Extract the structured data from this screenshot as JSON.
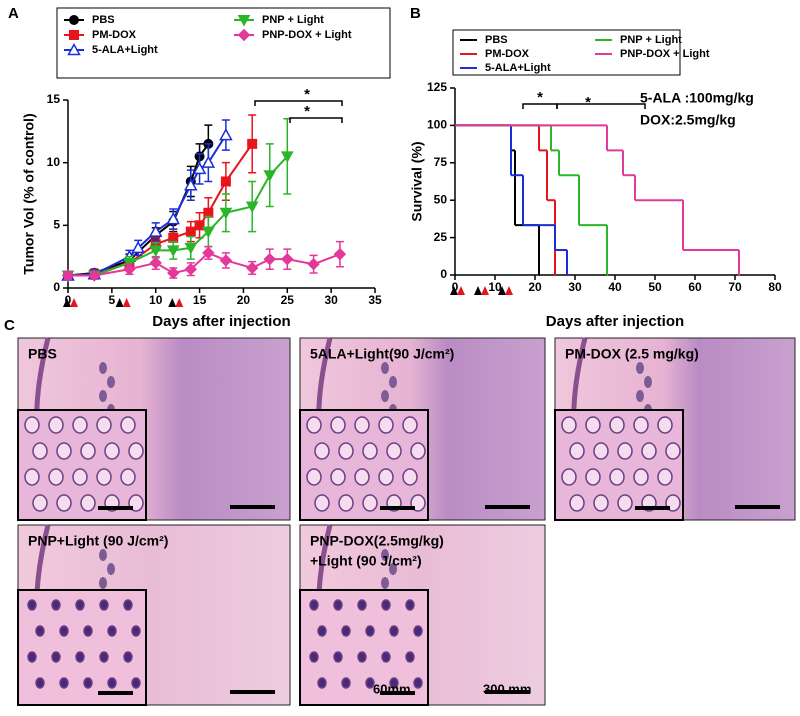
{
  "panel_labels": [
    "A",
    "B",
    "C"
  ],
  "chart_data": [
    {
      "type": "line",
      "x_label": "Days after injection",
      "y_label": "Tumor Vol (% of control)",
      "xlim": [
        0,
        35
      ],
      "xticks": [
        0,
        5,
        10,
        15,
        20,
        25,
        30,
        35
      ],
      "ylim": [
        0,
        15
      ],
      "yticks": [
        0,
        5,
        10,
        15
      ],
      "injections": [
        0,
        6,
        12
      ],
      "annotations": [
        "*",
        "*"
      ],
      "series": [
        {
          "name": "PBS",
          "color": "#000000",
          "marker": "circle",
          "x": [
            0,
            3,
            7,
            10,
            12,
            14,
            15,
            16
          ],
          "values": [
            1,
            1.2,
            2.2,
            4.2,
            5.3,
            8.5,
            10.5,
            11.5
          ],
          "errors": [
            0.3,
            0.3,
            0.5,
            0.6,
            0.8,
            1.2,
            1,
            1.5
          ]
        },
        {
          "name": "PM-DOX",
          "color": "#e8141c",
          "marker": "square",
          "x": [
            0,
            3,
            7,
            10,
            12,
            14,
            15,
            16,
            18,
            21
          ],
          "values": [
            1,
            1.1,
            2,
            3.5,
            4,
            4.5,
            5,
            6,
            8.5,
            11.5
          ],
          "errors": [
            0.3,
            0.3,
            0.4,
            0.5,
            0.7,
            0.8,
            1,
            1.2,
            1.5,
            2.3
          ]
        },
        {
          "name": "5-ALA+Light",
          "color": "#1a2fd6",
          "marker": "triangle-open",
          "x": [
            0,
            3,
            7,
            8,
            10,
            12,
            14,
            15,
            16,
            18
          ],
          "values": [
            1,
            1.1,
            2.5,
            3.2,
            4.5,
            5.5,
            8.2,
            9.5,
            10,
            12.2
          ],
          "errors": [
            0.3,
            0.3,
            0.5,
            0.6,
            0.7,
            0.8,
            1.2,
            1.2,
            1.5,
            1.2
          ]
        },
        {
          "name": "PNP + Light",
          "color": "#2ab52a",
          "marker": "triangle-down",
          "x": [
            0,
            3,
            7,
            10,
            12,
            14,
            16,
            18,
            21,
            23,
            25
          ],
          "values": [
            1,
            1,
            2,
            3,
            3,
            3.2,
            4.5,
            6,
            6.5,
            9,
            10.5
          ],
          "errors": [
            0.3,
            0.3,
            0.5,
            0.6,
            0.7,
            0.9,
            1.2,
            1.5,
            2,
            2.5,
            3
          ]
        },
        {
          "name": "PNP-DOX + Light",
          "color": "#e2399a",
          "marker": "diamond",
          "x": [
            0,
            3,
            7,
            10,
            12,
            14,
            16,
            18,
            21,
            23,
            25,
            28,
            31
          ],
          "values": [
            1,
            1,
            1.5,
            2,
            1.2,
            1.5,
            2.8,
            2.2,
            1.6,
            2.3,
            2.3,
            1.9,
            2.7
          ],
          "errors": [
            0.3,
            0.3,
            0.4,
            0.5,
            0.4,
            0.5,
            0.5,
            0.6,
            0.5,
            0.8,
            0.8,
            0.7,
            1
          ]
        }
      ]
    },
    {
      "type": "step",
      "x_label": "Days after injection",
      "y_label": "Survival (%)",
      "xlim": [
        0,
        80
      ],
      "xticks": [
        0,
        10,
        20,
        30,
        40,
        50,
        60,
        70,
        80
      ],
      "ylim": [
        0,
        125
      ],
      "yticks": [
        0,
        25,
        50,
        75,
        100,
        125
      ],
      "injections": [
        0,
        6,
        12
      ],
      "annotations": [
        "*",
        "*",
        "5-ALA :100mg/kg",
        "DOX:2.5mg/kg"
      ],
      "series": [
        {
          "name": "PBS",
          "color": "#000000",
          "x": [
            0,
            14,
            15,
            21
          ],
          "values": [
            100,
            83.3,
            33.3,
            0
          ]
        },
        {
          "name": "PM-DOX",
          "color": "#e8141c",
          "x": [
            0,
            21,
            23,
            25
          ],
          "values": [
            100,
            83.3,
            50,
            0
          ]
        },
        {
          "name": "5-ALA+Light",
          "color": "#1a2fd6",
          "x": [
            0,
            14,
            17,
            25,
            28
          ],
          "values": [
            100,
            66.7,
            33.3,
            16.7,
            0
          ]
        },
        {
          "name": "PNP + Light",
          "color": "#2ab52a",
          "x": [
            0,
            24,
            26,
            31,
            38
          ],
          "values": [
            100,
            83.3,
            66.7,
            33.3,
            0
          ]
        },
        {
          "name": "PNP-DOX + Light",
          "color": "#e2399a",
          "x": [
            0,
            38,
            42,
            45,
            57,
            71
          ],
          "values": [
            100,
            83.3,
            66.7,
            50,
            16.7,
            0
          ]
        }
      ]
    }
  ],
  "histology": {
    "panels": [
      {
        "label": [
          "PBS"
        ]
      },
      {
        "label": [
          "5ALA+Light(90 J/cm²)"
        ]
      },
      {
        "label": [
          "PM-DOX (2.5 mg/kg)"
        ]
      },
      {
        "label": [
          "PNP+Light (90 J/cm²)"
        ]
      },
      {
        "label": [
          "PNP-DOX(2.5mg/kg)",
          "+Light (90 J/cm²)"
        ]
      }
    ],
    "scale_labels": [
      "60mm",
      "300 mm"
    ]
  }
}
